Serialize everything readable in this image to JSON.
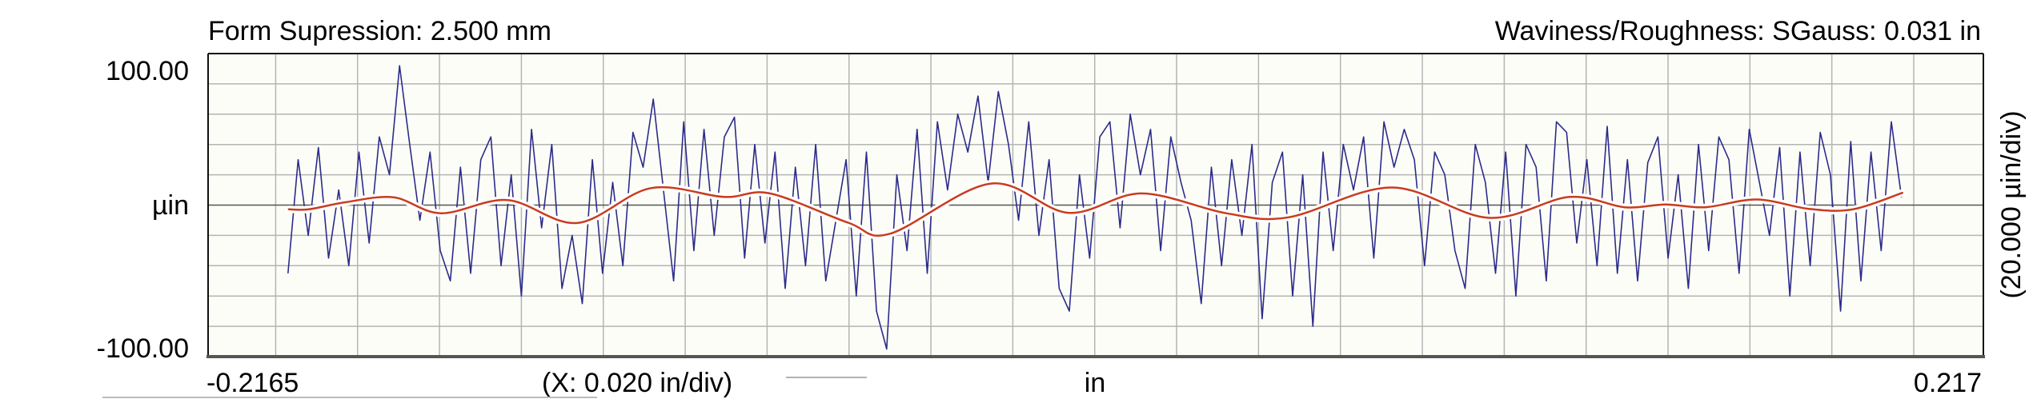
{
  "header": {
    "left_title": "Form Supression: 2.500 mm",
    "right_title": "Waviness/Roughness: SGauss: 0.031 in"
  },
  "chart_data": {
    "type": "line",
    "title": "",
    "xlabel": "in",
    "ylabel": "µin",
    "x_scale_label": "(X: 0.020 in/div)",
    "y_scale_label": "(20.000 µin/div)",
    "xlim": [
      -0.2165,
      0.217
    ],
    "ylim": [
      -100,
      100
    ],
    "x_tick_labels": [
      "-0.2165",
      "0.217"
    ],
    "y_tick_labels": [
      "100.00",
      "-100.00"
    ],
    "x_grid_step": 0.02,
    "y_grid_step": 20,
    "grid": true,
    "colors": {
      "profile": "#2b2b8a",
      "waviness": "#c83c1e",
      "plot_background": "#fdfdf8",
      "grid": "#b4b4b4"
    },
    "series": [
      {
        "role": "roughness profile",
        "x_range": [
          -0.197,
          0.197
        ],
        "y": [
          -45,
          30,
          -20,
          38,
          -35,
          10,
          -40,
          35,
          -25,
          45,
          20,
          92,
          40,
          -10,
          35,
          -30,
          -50,
          25,
          -45,
          30,
          45,
          -40,
          20,
          -60,
          50,
          -15,
          40,
          -55,
          -20,
          -65,
          30,
          -45,
          15,
          -40,
          48,
          25,
          70,
          10,
          -50,
          55,
          -30,
          50,
          -20,
          45,
          58,
          -35,
          40,
          -25,
          35,
          -55,
          25,
          -40,
          40,
          -50,
          -10,
          30,
          -60,
          35,
          -70,
          -95,
          20,
          -30,
          50,
          -45,
          55,
          10,
          60,
          35,
          72,
          15,
          75,
          40,
          -10,
          55,
          -20,
          30,
          -55,
          -70,
          20,
          -35,
          45,
          55,
          -15,
          60,
          20,
          50,
          -30,
          45,
          15,
          -10,
          -65,
          25,
          -40,
          30,
          -20,
          40,
          -75,
          15,
          35,
          -60,
          20,
          -80,
          35,
          -30,
          40,
          10,
          45,
          -35,
          55,
          25,
          50,
          30,
          -40,
          35,
          20,
          -30,
          -55,
          40,
          15,
          -45,
          35,
          -60,
          40,
          25,
          -50,
          55,
          48,
          -25,
          30,
          -40,
          52,
          -45,
          30,
          -50,
          28,
          45,
          -35,
          20,
          -55,
          40,
          -30,
          45,
          30,
          -45,
          50,
          15,
          -20,
          38,
          -60,
          35,
          -40,
          48,
          20,
          -70,
          42,
          -50,
          35,
          -30,
          55,
          5
        ]
      },
      {
        "role": "waviness",
        "x": [
          -0.1968,
          -0.1919,
          -0.1829,
          -0.1712,
          -0.1596,
          -0.1434,
          -0.1264,
          -0.1084,
          -0.0905,
          -0.0793,
          -0.0602,
          -0.05,
          -0.0254,
          -0.0064,
          0.0114,
          0.0321,
          0.0473,
          0.0725,
          0.0962,
          0.1159,
          0.1294,
          0.1394,
          0.1491,
          0.1617,
          0.1744,
          0.1851,
          0.1972
        ],
        "y": [
          -2.8,
          -2.8,
          1.9,
          5.1,
          -5.4,
          3.3,
          -11.8,
          11.2,
          5.4,
          7.7,
          -11.6,
          -18.9,
          14.2,
          -5.1,
          7.7,
          -5.4,
          -8.1,
          11.6,
          -8.4,
          5.4,
          -1.4,
          0.4,
          -1.4,
          3.7,
          -2.5,
          -2.8,
          8.1
        ]
      }
    ]
  }
}
